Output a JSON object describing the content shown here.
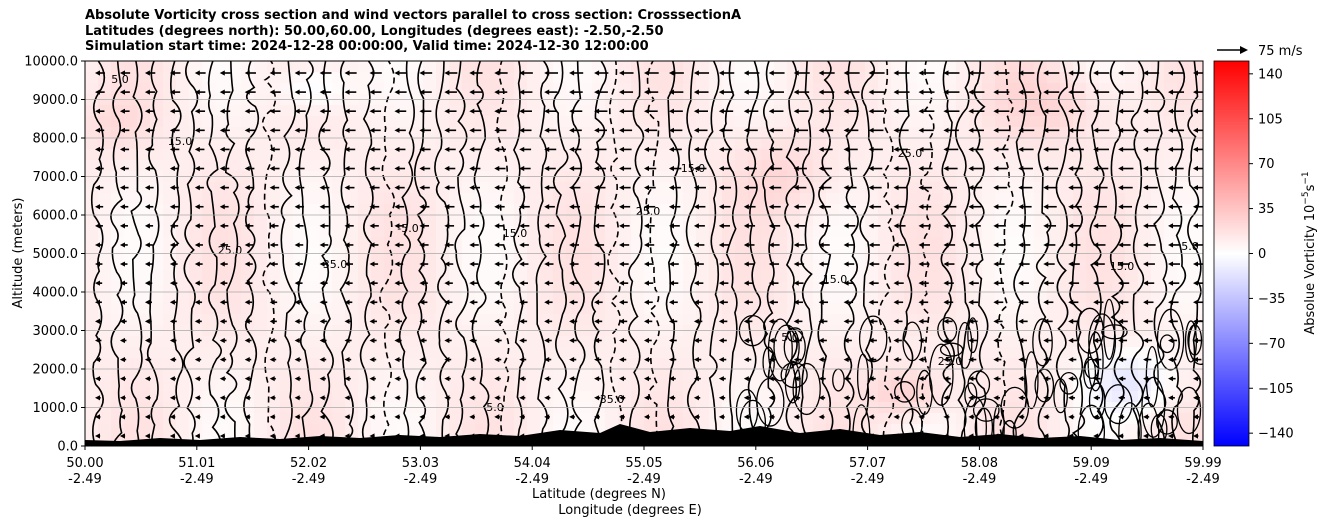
{
  "chart_data": {
    "type": "heatmap",
    "title": [
      "Absolute Vorticity cross section and wind vectors parallel to cross section: CrosssectionA",
      "Latitudes (degrees north): 50.00,60.00, Longitudes (degrees east): -2.50,-2.50",
      "Simulation start time: 2024-12-28 00:00:00, Valid time: 2024-12-30 12:00:00"
    ],
    "ylabel": "Altitude (meters)",
    "xlabel_lines": [
      "Latitude (degrees N)",
      "Longitude (degrees E)"
    ],
    "ylim": [
      0,
      10000
    ],
    "y_ticks": [
      "0.0",
      "1000.0",
      "2000.0",
      "3000.0",
      "4000.0",
      "5000.0",
      "6000.0",
      "7000.0",
      "8000.0",
      "9000.0",
      "10000.0"
    ],
    "x_ticks": [
      {
        "lat": "50.00",
        "lon": "-2.49"
      },
      {
        "lat": "51.01",
        "lon": "-2.49"
      },
      {
        "lat": "52.02",
        "lon": "-2.49"
      },
      {
        "lat": "53.03",
        "lon": "-2.49"
      },
      {
        "lat": "54.04",
        "lon": "-2.49"
      },
      {
        "lat": "55.05",
        "lon": "-2.49"
      },
      {
        "lat": "56.06",
        "lon": "-2.49"
      },
      {
        "lat": "57.07",
        "lon": "-2.49"
      },
      {
        "lat": "58.08",
        "lon": "-2.49"
      },
      {
        "lat": "59.09",
        "lon": "-2.49"
      },
      {
        "lat": "59.99",
        "lon": "-2.49"
      }
    ],
    "colorbar": {
      "label": "Absolue Vorticity 10",
      "label_exponent": "−5",
      "label_unit": "s",
      "label_unit_exponent": "−1",
      "ticks": [
        "140",
        "105",
        "70",
        "35",
        "0",
        "−35",
        "−70",
        "−105",
        "−140"
      ],
      "range": [
        -150,
        150
      ],
      "colors": {
        "neg": "#0000ff",
        "zero": "#ffffff",
        "pos": "#ff0000"
      }
    },
    "quiver_key": "75 m/s",
    "contour_labels": [
      "5.0",
      "15.0",
      "25.0",
      "35.0",
      "-5.0",
      "15.0",
      "25.0",
      "5.0",
      "15.0",
      "35.0",
      "5.0",
      "15.0",
      "25.0",
      "15.0",
      "5.0",
      "25.0"
    ],
    "grid": true
  }
}
